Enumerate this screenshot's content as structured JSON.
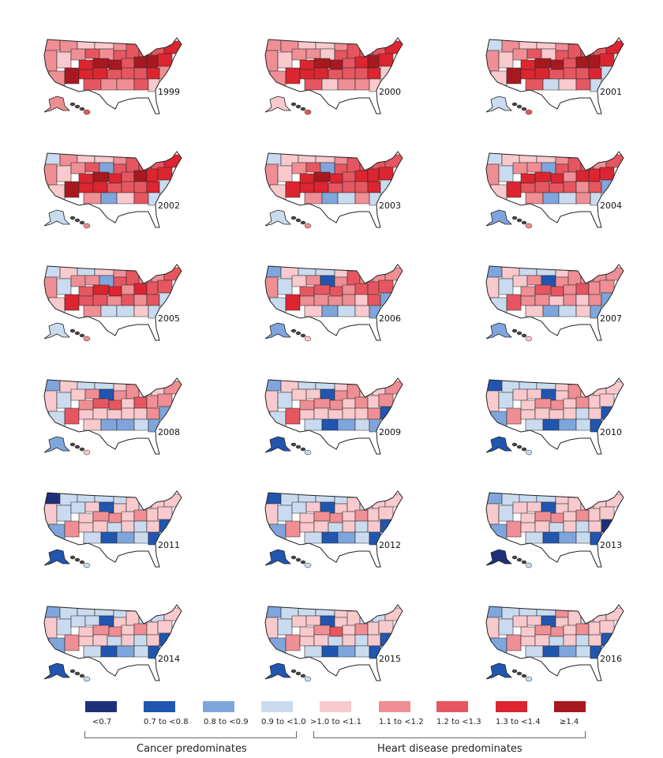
{
  "years": [
    "1999",
    "2000",
    "2001",
    "2002",
    "2003",
    "2004",
    "2005",
    "2006",
    "2007",
    "2008",
    "2009",
    "2010",
    "2011",
    "2012",
    "2013",
    "2014",
    "2015",
    "2016"
  ],
  "level_colors": [
    "#1f2f7a",
    "#2156b0",
    "#7fa6dc",
    "#cadbf0",
    "#f8c9cd",
    "#ef8e94",
    "#e65661",
    "#dc2530",
    "#a7191f"
  ],
  "legend": {
    "items": [
      {
        "label": "<0.7",
        "color": "#1f2f7a"
      },
      {
        "label": "0.7 to <0.8",
        "color": "#2156b0"
      },
      {
        "label": "0.8 to <0.9",
        "color": "#7fa6dc"
      },
      {
        "label": "0.9 to <1.0",
        "color": "#cadbf0"
      },
      {
        "label": ">1.0 to <1.1",
        "color": "#f8c9cd"
      },
      {
        "label": "1.1 to <1.2",
        "color": "#ef8e94"
      },
      {
        "label": "1.2 to <1.3",
        "color": "#e65661"
      },
      {
        "label": "1.3 to <1.4",
        "color": "#dc2530"
      },
      {
        "label": "≥1.4",
        "color": "#a7191f"
      }
    ],
    "cancer_label": "Cancer predominates",
    "heart_label": "Heart disease predominates"
  },
  "region_levels": [
    [
      5,
      5,
      4,
      4,
      5,
      5,
      4,
      5,
      6,
      5,
      6,
      6,
      6,
      6,
      7,
      5,
      8,
      7,
      8,
      8,
      6,
      8,
      8,
      7,
      7,
      7,
      6,
      6,
      6,
      7,
      5,
      6,
      5,
      5,
      6,
      4
    ],
    [
      5,
      5,
      4,
      4,
      5,
      5,
      4,
      5,
      5,
      4,
      6,
      6,
      6,
      6,
      7,
      5,
      7,
      7,
      8,
      8,
      6,
      7,
      8,
      7,
      7,
      7,
      6,
      6,
      6,
      7,
      4,
      6,
      4,
      5,
      5,
      4
    ],
    [
      3,
      5,
      4,
      4,
      5,
      5,
      4,
      5,
      6,
      4,
      6,
      6,
      6,
      6,
      7,
      4,
      8,
      7,
      8,
      8,
      6,
      8,
      8,
      7,
      7,
      7,
      6,
      6,
      6,
      7,
      3,
      6,
      3,
      4,
      6,
      3
    ],
    [
      3,
      5,
      4,
      4,
      5,
      5,
      4,
      5,
      6,
      2,
      6,
      6,
      6,
      6,
      7,
      4,
      8,
      7,
      8,
      7,
      6,
      8,
      7,
      7,
      7,
      7,
      6,
      6,
      6,
      7,
      3,
      5,
      2,
      4,
      6,
      3
    ],
    [
      3,
      4,
      4,
      4,
      5,
      5,
      4,
      5,
      6,
      2,
      6,
      6,
      6,
      6,
      6,
      4,
      7,
      7,
      8,
      7,
      6,
      7,
      7,
      7,
      7,
      7,
      6,
      6,
      6,
      7,
      3,
      5,
      2,
      3,
      5,
      3
    ],
    [
      3,
      4,
      4,
      4,
      5,
      5,
      3,
      5,
      5,
      2,
      6,
      6,
      6,
      5,
      6,
      4,
      7,
      7,
      7,
      7,
      5,
      7,
      7,
      7,
      6,
      6,
      6,
      6,
      5,
      6,
      2,
      5,
      2,
      3,
      5,
      3
    ],
    [
      3,
      4,
      3,
      4,
      5,
      5,
      3,
      5,
      5,
      2,
      6,
      6,
      5,
      5,
      6,
      4,
      7,
      6,
      7,
      7,
      5,
      7,
      6,
      6,
      6,
      6,
      5,
      6,
      5,
      6,
      3,
      5,
      3,
      3,
      4,
      3
    ],
    [
      2,
      4,
      3,
      3,
      4,
      5,
      3,
      4,
      5,
      1,
      5,
      6,
      5,
      5,
      5,
      3,
      7,
      6,
      6,
      6,
      5,
      6,
      6,
      6,
      5,
      5,
      5,
      5,
      4,
      6,
      2,
      4,
      2,
      3,
      4,
      2
    ],
    [
      2,
      4,
      3,
      3,
      4,
      4,
      3,
      4,
      5,
      1,
      5,
      5,
      5,
      5,
      5,
      3,
      6,
      5,
      6,
      6,
      5,
      6,
      5,
      5,
      5,
      5,
      4,
      5,
      4,
      5,
      2,
      4,
      2,
      3,
      4,
      2
    ],
    [
      2,
      4,
      3,
      3,
      4,
      4,
      3,
      4,
      5,
      1,
      5,
      5,
      4,
      4,
      5,
      3,
      6,
      5,
      6,
      6,
      4,
      6,
      5,
      5,
      4,
      4,
      4,
      4,
      4,
      5,
      2,
      4,
      2,
      2,
      3,
      2
    ],
    [
      2,
      4,
      3,
      3,
      4,
      4,
      3,
      4,
      4,
      1,
      5,
      5,
      4,
      4,
      5,
      3,
      6,
      5,
      5,
      5,
      4,
      5,
      4,
      5,
      4,
      4,
      4,
      4,
      4,
      5,
      1,
      3,
      1,
      2,
      3,
      2
    ],
    [
      1,
      3,
      3,
      3,
      4,
      4,
      3,
      4,
      4,
      1,
      4,
      5,
      4,
      4,
      4,
      2,
      5,
      4,
      5,
      5,
      4,
      5,
      4,
      4,
      4,
      4,
      4,
      4,
      3,
      4,
      1,
      3,
      1,
      2,
      3,
      1
    ],
    [
      0,
      3,
      3,
      3,
      3,
      4,
      3,
      3,
      4,
      1,
      4,
      4,
      3,
      4,
      4,
      2,
      5,
      4,
      5,
      5,
      4,
      5,
      4,
      4,
      4,
      4,
      3,
      4,
      3,
      4,
      1,
      3,
      1,
      2,
      3,
      1
    ],
    [
      1,
      3,
      3,
      3,
      3,
      4,
      3,
      3,
      4,
      1,
      4,
      4,
      3,
      4,
      4,
      2,
      5,
      4,
      5,
      5,
      4,
      5,
      4,
      4,
      4,
      4,
      3,
      4,
      3,
      4,
      1,
      3,
      1,
      2,
      3,
      1
    ],
    [
      2,
      3,
      3,
      3,
      4,
      4,
      3,
      4,
      4,
      1,
      4,
      4,
      4,
      4,
      4,
      2,
      5,
      4,
      5,
      5,
      4,
      5,
      4,
      4,
      4,
      4,
      3,
      4,
      3,
      4,
      0,
      3,
      1,
      2,
      3,
      1
    ],
    [
      2,
      3,
      3,
      3,
      3,
      4,
      3,
      3,
      3,
      1,
      4,
      4,
      3,
      3,
      4,
      2,
      5,
      4,
      5,
      5,
      4,
      5,
      4,
      4,
      4,
      4,
      3,
      4,
      3,
      4,
      1,
      3,
      1,
      2,
      3,
      1
    ],
    [
      2,
      3,
      3,
      3,
      4,
      4,
      3,
      4,
      4,
      1,
      4,
      4,
      3,
      3,
      4,
      2,
      5,
      4,
      5,
      6,
      4,
      5,
      4,
      4,
      4,
      4,
      3,
      4,
      3,
      4,
      1,
      3,
      1,
      2,
      3,
      1
    ],
    [
      2,
      3,
      3,
      3,
      5,
      4,
      3,
      4,
      4,
      1,
      4,
      4,
      3,
      4,
      4,
      2,
      5,
      4,
      5,
      5,
      4,
      5,
      4,
      4,
      4,
      4,
      3,
      4,
      3,
      4,
      1,
      3,
      1,
      2,
      3,
      1
    ]
  ]
}
